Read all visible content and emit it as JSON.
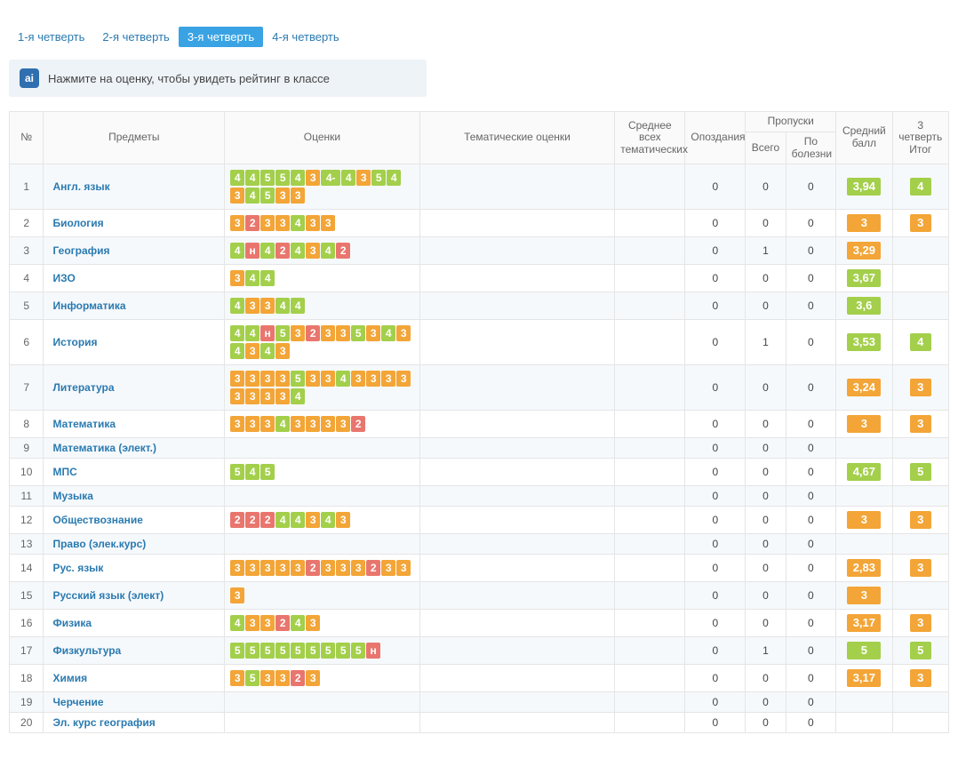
{
  "colors": {
    "grade": {
      "5": "#a3cf4b",
      "4": "#a3cf4b",
      "4-": "#a3cf4b",
      "3": "#f3a537",
      "2": "#e9766e",
      "н": "#e9766e"
    },
    "avg_gte_3_5": "#a3cf4b",
    "avg_lt_3_5": "#f3a537",
    "final": {
      "5": "#a3cf4b",
      "4": "#a3cf4b",
      "3": "#f3a537"
    }
  },
  "tabs": [
    {
      "label": "1-я четверть",
      "active": false
    },
    {
      "label": "2-я четверть",
      "active": false
    },
    {
      "label": "3-я четверть",
      "active": true
    },
    {
      "label": "4-я четверть",
      "active": false
    }
  ],
  "hint": {
    "icon": "ai",
    "text": "Нажмите на оценку, чтобы увидеть рейтинг в классе"
  },
  "headers": {
    "num": "№",
    "subjects": "Предметы",
    "grades": "Оценки",
    "thematic": "Тематические оценки",
    "avg_thematic": "Среднее всех тематических",
    "late": "Опоздания",
    "absences": "Пропуски",
    "abs_total": "Всего",
    "abs_ill": "По болезни",
    "avg": "Средний балл",
    "final": "3 четверть Итог"
  },
  "rows": [
    {
      "n": 1,
      "subject": "Англ. язык",
      "grades": [
        "4",
        "4",
        "5",
        "5",
        "4",
        "3",
        "4-",
        "4",
        "3",
        "5",
        "4",
        "3",
        "4",
        "5",
        "3",
        "3"
      ],
      "late": 0,
      "total": 0,
      "ill": 0,
      "avg": "3,94",
      "final": "4"
    },
    {
      "n": 2,
      "subject": "Биология",
      "grades": [
        "3",
        "2",
        "3",
        "3",
        "4",
        "3",
        "3"
      ],
      "late": 0,
      "total": 0,
      "ill": 0,
      "avg": "3",
      "final": "3"
    },
    {
      "n": 3,
      "subject": "География",
      "grades": [
        "4",
        "н",
        "4",
        "2",
        "4",
        "3",
        "4",
        "2"
      ],
      "late": 0,
      "total": 1,
      "ill": 0,
      "avg": "3,29",
      "final": ""
    },
    {
      "n": 4,
      "subject": "ИЗО",
      "grades": [
        "3",
        "4",
        "4"
      ],
      "late": 0,
      "total": 0,
      "ill": 0,
      "avg": "3,67",
      "final": ""
    },
    {
      "n": 5,
      "subject": "Информатика",
      "grades": [
        "4",
        "3",
        "3",
        "4",
        "4"
      ],
      "late": 0,
      "total": 0,
      "ill": 0,
      "avg": "3,6",
      "final": ""
    },
    {
      "n": 6,
      "subject": "История",
      "grades": [
        "4",
        "4",
        "н",
        "5",
        "3",
        "2",
        "3",
        "3",
        "5",
        "3",
        "4",
        "3",
        "4",
        "3",
        "4",
        "3"
      ],
      "late": 0,
      "total": 1,
      "ill": 0,
      "avg": "3,53",
      "final": "4"
    },
    {
      "n": 7,
      "subject": "Литература",
      "grades": [
        "3",
        "3",
        "3",
        "3",
        "5",
        "3",
        "3",
        "4",
        "3",
        "3",
        "3",
        "3",
        "3",
        "3",
        "3",
        "3",
        "4"
      ],
      "late": 0,
      "total": 0,
      "ill": 0,
      "avg": "3,24",
      "final": "3"
    },
    {
      "n": 8,
      "subject": "Математика",
      "grades": [
        "3",
        "3",
        "3",
        "4",
        "3",
        "3",
        "3",
        "3",
        "2"
      ],
      "late": 0,
      "total": 0,
      "ill": 0,
      "avg": "3",
      "final": "3"
    },
    {
      "n": 9,
      "subject": "Математика (элект.)",
      "grades": [],
      "late": 0,
      "total": 0,
      "ill": 0,
      "avg": "",
      "final": ""
    },
    {
      "n": 10,
      "subject": "МПС",
      "grades": [
        "5",
        "4",
        "5"
      ],
      "late": 0,
      "total": 0,
      "ill": 0,
      "avg": "4,67",
      "final": "5"
    },
    {
      "n": 11,
      "subject": "Музыка",
      "grades": [],
      "late": 0,
      "total": 0,
      "ill": 0,
      "avg": "",
      "final": ""
    },
    {
      "n": 12,
      "subject": "Обществознание",
      "grades": [
        "2",
        "2",
        "2",
        "4",
        "4",
        "3",
        "4",
        "3"
      ],
      "late": 0,
      "total": 0,
      "ill": 0,
      "avg": "3",
      "final": "3"
    },
    {
      "n": 13,
      "subject": "Право (элек.курс)",
      "grades": [],
      "late": 0,
      "total": 0,
      "ill": 0,
      "avg": "",
      "final": ""
    },
    {
      "n": 14,
      "subject": "Рус. язык",
      "grades": [
        "3",
        "3",
        "3",
        "3",
        "3",
        "2",
        "3",
        "3",
        "3",
        "2",
        "3",
        "3"
      ],
      "late": 0,
      "total": 0,
      "ill": 0,
      "avg": "2,83",
      "final": "3"
    },
    {
      "n": 15,
      "subject": "Русский язык (элект)",
      "grades": [
        "3"
      ],
      "late": 0,
      "total": 0,
      "ill": 0,
      "avg": "3",
      "final": ""
    },
    {
      "n": 16,
      "subject": "Физика",
      "grades": [
        "4",
        "3",
        "3",
        "2",
        "4",
        "3"
      ],
      "late": 0,
      "total": 0,
      "ill": 0,
      "avg": "3,17",
      "final": "3"
    },
    {
      "n": 17,
      "subject": "Физкультура",
      "grades": [
        "5",
        "5",
        "5",
        "5",
        "5",
        "5",
        "5",
        "5",
        "5",
        "н"
      ],
      "late": 0,
      "total": 1,
      "ill": 0,
      "avg": "5",
      "final": "5"
    },
    {
      "n": 18,
      "subject": "Химия",
      "grades": [
        "3",
        "5",
        "3",
        "3",
        "2",
        "3"
      ],
      "late": 0,
      "total": 0,
      "ill": 0,
      "avg": "3,17",
      "final": "3"
    },
    {
      "n": 19,
      "subject": "Черчение",
      "grades": [],
      "late": 0,
      "total": 0,
      "ill": 0,
      "avg": "",
      "final": ""
    },
    {
      "n": 20,
      "subject": "Эл. курс география",
      "grades": [],
      "late": 0,
      "total": 0,
      "ill": 0,
      "avg": "",
      "final": ""
    }
  ]
}
